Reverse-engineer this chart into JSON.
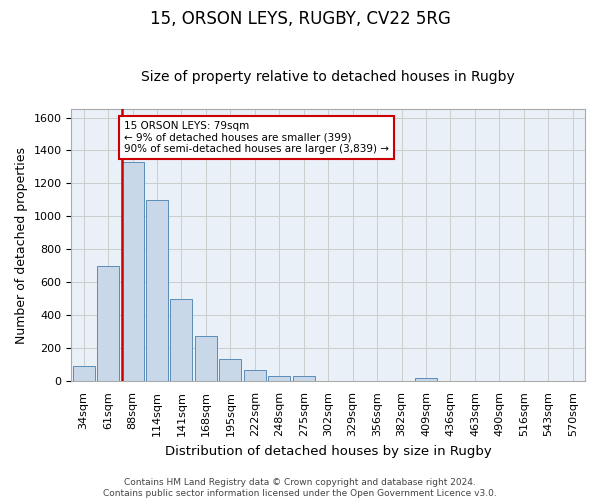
{
  "title1": "15, ORSON LEYS, RUGBY, CV22 5RG",
  "title2": "Size of property relative to detached houses in Rugby",
  "xlabel": "Distribution of detached houses by size in Rugby",
  "ylabel": "Number of detached properties",
  "categories": [
    "34sqm",
    "61sqm",
    "88sqm",
    "114sqm",
    "141sqm",
    "168sqm",
    "195sqm",
    "222sqm",
    "248sqm",
    "275sqm",
    "302sqm",
    "329sqm",
    "356sqm",
    "382sqm",
    "409sqm",
    "436sqm",
    "463sqm",
    "490sqm",
    "516sqm",
    "543sqm",
    "570sqm"
  ],
  "values": [
    95,
    700,
    1330,
    1100,
    500,
    275,
    135,
    70,
    35,
    35,
    0,
    0,
    0,
    0,
    20,
    0,
    0,
    0,
    0,
    0,
    0
  ],
  "bar_color": "#c8d8e8",
  "bar_edge_color": "#5b8db8",
  "highlight_bar_index": 2,
  "highlight_line_color": "#cc0000",
  "annotation_text": "15 ORSON LEYS: 79sqm\n← 9% of detached houses are smaller (399)\n90% of semi-detached houses are larger (3,839) →",
  "annotation_box_color": "#ffffff",
  "annotation_box_edge": "#cc0000",
  "ylim": [
    0,
    1650
  ],
  "yticks": [
    0,
    200,
    400,
    600,
    800,
    1000,
    1200,
    1400,
    1600
  ],
  "grid_color": "#cccccc",
  "background_color": "#eaf0f8",
  "footer": "Contains HM Land Registry data © Crown copyright and database right 2024.\nContains public sector information licensed under the Open Government Licence v3.0.",
  "title1_fontsize": 12,
  "title2_fontsize": 10,
  "xlabel_fontsize": 9.5,
  "ylabel_fontsize": 9,
  "tick_fontsize": 8,
  "footer_fontsize": 6.5
}
